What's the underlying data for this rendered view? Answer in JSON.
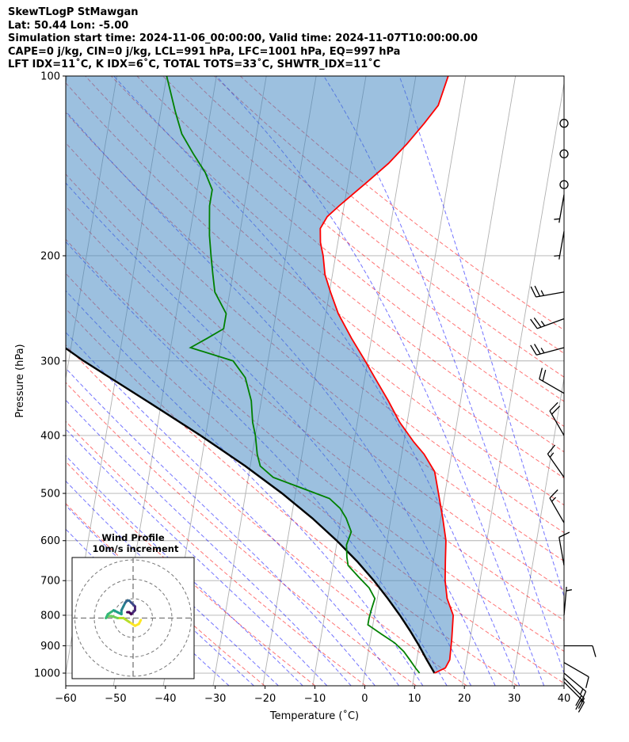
{
  "header": {
    "line1": "SkewTLogP StMawgan",
    "line2": "Lat: 50.44   Lon: -5.00",
    "line3": "Simulation start time: 2024-11-06_00:00:00, Valid time: 2024-11-07T10:00:00.00",
    "line4": "CAPE=0 j/kg, CIN=0 j/kg, LCL=991 hPa, LFC=1001 hPa, EQ=997 hPa",
    "line5": "LFT IDX=11˚C, K IDX=6˚C, TOTAL TOTS=33˚C, SHWTR_IDX=11˚C"
  },
  "chart_data": {
    "type": "line",
    "chart_kind": "skew-t log-p",
    "xlabel": "Temperature (˚C)",
    "ylabel": "Pressure (hPa)",
    "xlim": [
      -60,
      40
    ],
    "ylim": [
      1050,
      100
    ],
    "y_scale": "log",
    "grid": true,
    "x_ticks": [
      "−60",
      "−50",
      "−40",
      "−30",
      "−20",
      "−10",
      "0",
      "10",
      "20",
      "30",
      "40"
    ],
    "y_ticks": [
      "100",
      "200",
      "300",
      "400",
      "500",
      "600",
      "700",
      "800",
      "900",
      "1000"
    ],
    "series": [
      {
        "key": "temperature",
        "color": "#ff0000",
        "points": [
          [
            14,
            1000
          ],
          [
            16,
            980
          ],
          [
            16.6,
            950
          ],
          [
            16.3,
            875
          ],
          [
            15.8,
            800
          ],
          [
            14,
            750
          ],
          [
            13,
            700
          ],
          [
            12.4,
            650
          ],
          [
            11.8,
            600
          ],
          [
            10.4,
            550
          ],
          [
            8.7,
            500
          ],
          [
            7.2,
            460
          ],
          [
            4.5,
            430
          ],
          [
            2,
            410
          ],
          [
            -1.5,
            380
          ],
          [
            -4.5,
            350
          ],
          [
            -8,
            320
          ],
          [
            -10.5,
            300
          ],
          [
            -14,
            275
          ],
          [
            -17.5,
            250
          ],
          [
            -19.8,
            230
          ],
          [
            -21.5,
            215
          ],
          [
            -22.5,
            200
          ],
          [
            -23.5,
            190
          ],
          [
            -24,
            180
          ],
          [
            -23,
            172
          ],
          [
            -21,
            165
          ],
          [
            -16,
            150
          ],
          [
            -12.5,
            140
          ],
          [
            -9.5,
            130
          ],
          [
            -6.7,
            120
          ],
          [
            -4.5,
            112
          ],
          [
            -3.5,
            100
          ]
        ]
      },
      {
        "key": "dewpoint",
        "color": "#008000",
        "points": [
          [
            11,
            1000
          ],
          [
            10,
            980
          ],
          [
            8.6,
            950
          ],
          [
            7.1,
            920
          ],
          [
            5,
            890
          ],
          [
            2,
            860
          ],
          [
            -1,
            830
          ],
          [
            -1,
            810
          ],
          [
            -0.8,
            780
          ],
          [
            -0.5,
            750
          ],
          [
            -2,
            720
          ],
          [
            -4.5,
            690
          ],
          [
            -7,
            660
          ],
          [
            -7.5,
            640
          ],
          [
            -8,
            610
          ],
          [
            -7.5,
            580
          ],
          [
            -9,
            550
          ],
          [
            -10.5,
            530
          ],
          [
            -13,
            510
          ],
          [
            -25,
            470
          ],
          [
            -28,
            450
          ],
          [
            -29,
            430
          ],
          [
            -30,
            400
          ],
          [
            -31,
            380
          ],
          [
            -32,
            350
          ],
          [
            -34,
            320
          ],
          [
            -37,
            300
          ],
          [
            -46,
            285
          ],
          [
            -43,
            275
          ],
          [
            -40,
            265
          ],
          [
            -40,
            250
          ],
          [
            -43,
            230
          ],
          [
            -44,
            215
          ],
          [
            -45,
            200
          ],
          [
            -46,
            185
          ],
          [
            -46.5,
            175
          ],
          [
            -47,
            165
          ],
          [
            -47,
            155
          ],
          [
            -49,
            145
          ],
          [
            -52,
            135
          ],
          [
            -55,
            125
          ],
          [
            -57,
            115
          ],
          [
            -60,
            100
          ]
        ]
      },
      {
        "key": "parcel",
        "color": "#000000",
        "points": [
          [
            14,
            1000
          ],
          [
            12,
            950
          ],
          [
            10,
            900
          ],
          [
            7.7,
            850
          ],
          [
            5.1,
            800
          ],
          [
            2.1,
            750
          ],
          [
            -1.3,
            700
          ],
          [
            -5.3,
            650
          ],
          [
            -10.1,
            600
          ],
          [
            -15.8,
            550
          ],
          [
            -22.7,
            500
          ],
          [
            -31,
            450
          ],
          [
            -41,
            400
          ],
          [
            -53,
            350
          ],
          [
            -67,
            300
          ],
          [
            -82,
            250
          ],
          [
            -100,
            200
          ],
          [
            -122,
            150
          ],
          [
            -140,
            100
          ]
        ]
      }
    ],
    "cape_shading": {
      "color": "#3a82c0",
      "opacity": 0.5,
      "between": [
        "temperature",
        "parcel"
      ]
    },
    "dry_adiabats": {
      "color": "#ff0000",
      "style": "dashed",
      "theta_K": [
        250,
        260,
        270,
        280,
        290,
        300,
        310,
        320,
        330,
        340,
        350,
        360,
        370,
        380,
        390,
        400,
        410,
        420,
        430,
        440
      ]
    },
    "moist_adiabats": {
      "color": "#0000ff",
      "style": "dashed",
      "start_temps_C": [
        -30,
        -25,
        -20,
        -15,
        -10,
        -5,
        0,
        5,
        10,
        15,
        20,
        25,
        30,
        35,
        40,
        45
      ]
    },
    "mixing_ratio": {
      "color": "#9400d3",
      "style": "dashed",
      "values_gkg": [
        0.01
      ]
    },
    "wind_barbs": {
      "x_temp": 40,
      "color": "#000000",
      "barbs": [
        {
          "p": 120,
          "speed_kt": 0,
          "dir": 0
        },
        {
          "p": 135,
          "speed_kt": 0,
          "dir": 0
        },
        {
          "p": 152,
          "speed_kt": 0,
          "dir": 0
        },
        {
          "p": 158,
          "speed_kt": 5,
          "dir": 190
        },
        {
          "p": 182,
          "speed_kt": 5,
          "dir": 190
        },
        {
          "p": 230,
          "speed_kt": 25,
          "dir": 260
        },
        {
          "p": 255,
          "speed_kt": 25,
          "dir": 250
        },
        {
          "p": 285,
          "speed_kt": 25,
          "dir": 255
        },
        {
          "p": 340,
          "speed_kt": 20,
          "dir": 300
        },
        {
          "p": 400,
          "speed_kt": 20,
          "dir": 330
        },
        {
          "p": 470,
          "speed_kt": 15,
          "dir": 325
        },
        {
          "p": 560,
          "speed_kt": 15,
          "dir": 330
        },
        {
          "p": 660,
          "speed_kt": 10,
          "dir": 350
        },
        {
          "p": 800,
          "speed_kt": 5,
          "dir": 5
        },
        {
          "p": 900,
          "speed_kt": 10,
          "dir": 90
        },
        {
          "p": 960,
          "speed_kt": 10,
          "dir": 120
        },
        {
          "p": 1000,
          "speed_kt": 15,
          "dir": 130
        },
        {
          "p": 1020,
          "speed_kt": 20,
          "dir": 135
        },
        {
          "p": 1035,
          "speed_kt": 20,
          "dir": 135
        }
      ]
    },
    "hodograph": {
      "title": "Wind Profile",
      "subtitle": "10m/s increment",
      "ring_spacing": 10,
      "rings": 3,
      "color_map": "viridis",
      "u": [
        4,
        3,
        1,
        -2,
        -5,
        -8,
        -11,
        -13,
        -14,
        -13,
        -10,
        -8,
        -6,
        -6,
        -5,
        -4,
        -3,
        -2,
        -1,
        0,
        1,
        1,
        0,
        -1,
        -2,
        -3
      ],
      "v": [
        -1,
        -3,
        -4,
        -2,
        0,
        0,
        1,
        1,
        0,
        2,
        4,
        3,
        2,
        4,
        6,
        8,
        9,
        9,
        8,
        7,
        6,
        4,
        3,
        2,
        3,
        3
      ]
    }
  }
}
